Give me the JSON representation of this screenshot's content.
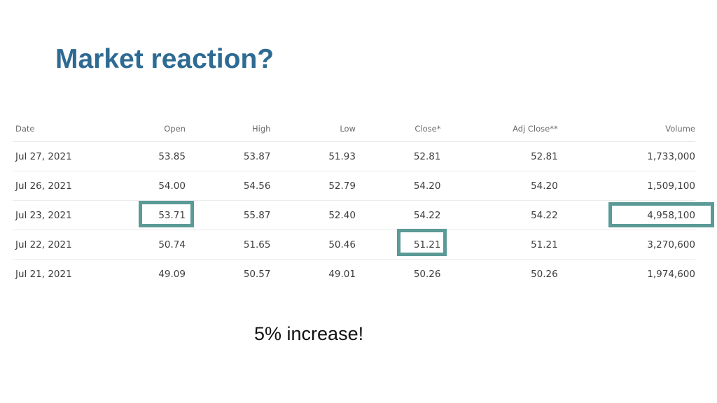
{
  "slide": {
    "title": "Market reaction?",
    "caption": "5% increase!"
  },
  "table": {
    "columns": [
      "Date",
      "Open",
      "High",
      "Low",
      "Close*",
      "Adj Close**",
      "Volume"
    ],
    "rows": [
      [
        "Jul 27, 2021",
        "53.85",
        "53.87",
        "51.93",
        "52.81",
        "52.81",
        "1,733,000"
      ],
      [
        "Jul 26, 2021",
        "54.00",
        "54.56",
        "52.79",
        "54.20",
        "54.20",
        "1,509,100"
      ],
      [
        "Jul 23, 2021",
        "53.71",
        "55.87",
        "52.40",
        "54.22",
        "54.22",
        "4,958,100"
      ],
      [
        "Jul 22, 2021",
        "50.74",
        "51.65",
        "50.46",
        "51.21",
        "51.21",
        "3,270,600"
      ],
      [
        "Jul 21, 2021",
        "49.09",
        "50.57",
        "49.01",
        "50.26",
        "50.26",
        "1,974,600"
      ]
    ]
  },
  "highlights": [
    {
      "row": "Jul 23, 2021",
      "column": "Open",
      "value": "53.71"
    },
    {
      "row": "Jul 22, 2021",
      "column": "Close*",
      "value": "51.21"
    },
    {
      "row": "Jul 23, 2021",
      "column": "Volume",
      "value": "4,958,100"
    }
  ],
  "colors": {
    "title": "#2e6b93",
    "highlight_border": "#5b9a96",
    "text": "#3c3c3c",
    "header_text": "#6b6b6b"
  }
}
